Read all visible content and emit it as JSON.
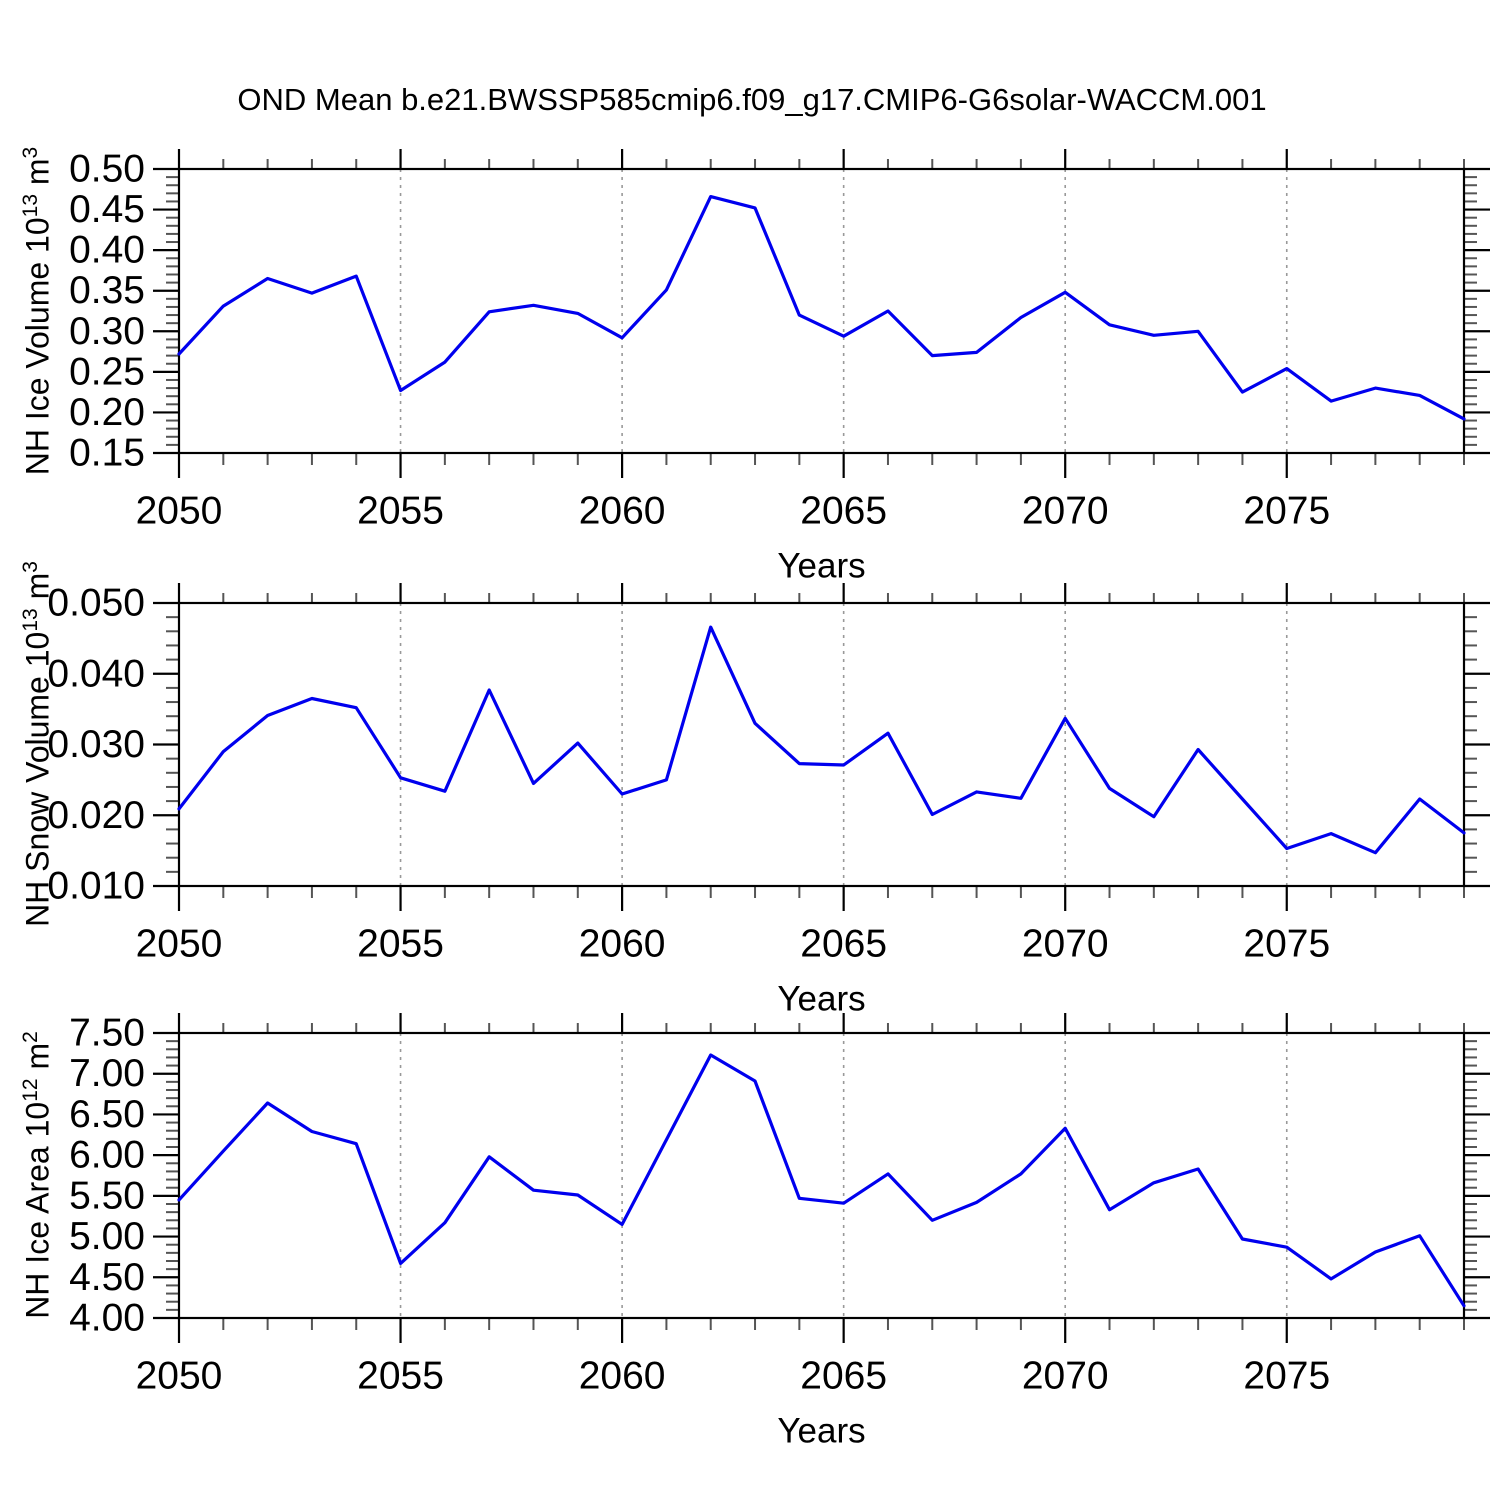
{
  "title": "OND Mean b.e21.BWSSP585cmip6.f09_g17.CMIP6-G6solar-WACCM.001",
  "colors": {
    "line": "#0000EE",
    "axis": "#000000",
    "minor_tick": "#555555",
    "grid": "#999999",
    "background": "#ffffff"
  },
  "chart_data": [
    {
      "type": "line",
      "name": "nh-ice-volume",
      "ylabel": {
        "text": "NH Ice Volume 10",
        "exp": "13",
        "unit": " m",
        "unit_exp": "3"
      },
      "xlabel": "Years",
      "xlim": [
        2050,
        2079
      ],
      "ylim": [
        0.15,
        0.5
      ],
      "xtick_values": [
        2050,
        2055,
        2060,
        2065,
        2070,
        2075
      ],
      "xtick_labels": [
        "2050",
        "2055",
        "2060",
        "2065",
        "2070",
        "2075"
      ],
      "xminor_step": 1,
      "ytick_values": [
        0.5,
        0.45,
        0.4,
        0.35,
        0.3,
        0.25,
        0.2,
        0.15
      ],
      "ytick_labels": [
        "0.50",
        "0.45",
        "0.40",
        "0.35",
        "0.30",
        "0.25",
        "0.20",
        "0.15"
      ],
      "yminor_step": 0.01,
      "grid_years": [
        2055,
        2060,
        2065,
        2070,
        2075
      ],
      "grid_on": true,
      "legend": "none",
      "x": [
        2050,
        2051,
        2052,
        2053,
        2054,
        2055,
        2056,
        2057,
        2058,
        2059,
        2060,
        2061,
        2062,
        2063,
        2064,
        2065,
        2066,
        2067,
        2068,
        2069,
        2070,
        2071,
        2072,
        2073,
        2074,
        2075,
        2076,
        2077,
        2078,
        2079
      ],
      "values": [
        0.272,
        0.331,
        0.365,
        0.347,
        0.368,
        0.227,
        0.262,
        0.324,
        0.332,
        0.322,
        0.292,
        0.351,
        0.466,
        0.452,
        0.32,
        0.294,
        0.325,
        0.27,
        0.274,
        0.317,
        0.348,
        0.308,
        0.295,
        0.3,
        0.225,
        0.254,
        0.214,
        0.23,
        0.221,
        0.192
      ]
    },
    {
      "type": "line",
      "name": "nh-snow-volume",
      "ylabel": {
        "text": "NH Snow Volume 10",
        "exp": "13",
        "unit": " m",
        "unit_exp": "3"
      },
      "xlabel": "Years",
      "xlim": [
        2050,
        2079
      ],
      "ylim": [
        0.01,
        0.05
      ],
      "xtick_values": [
        2050,
        2055,
        2060,
        2065,
        2070,
        2075
      ],
      "xtick_labels": [
        "2050",
        "2055",
        "2060",
        "2065",
        "2070",
        "2075"
      ],
      "xminor_step": 1,
      "ytick_values": [
        0.05,
        0.04,
        0.03,
        0.02,
        0.01
      ],
      "ytick_labels": [
        "0.050",
        "0.040",
        "0.030",
        "0.020",
        "0.010"
      ],
      "yminor_step": 0.002,
      "grid_years": [
        2055,
        2060,
        2065,
        2070,
        2075
      ],
      "grid_on": true,
      "legend": "none",
      "x": [
        2050,
        2051,
        2052,
        2053,
        2054,
        2055,
        2056,
        2057,
        2058,
        2059,
        2060,
        2061,
        2062,
        2063,
        2064,
        2065,
        2066,
        2067,
        2068,
        2069,
        2070,
        2071,
        2072,
        2073,
        2074,
        2075,
        2076,
        2077,
        2078,
        2079
      ],
      "values": [
        0.0209,
        0.029,
        0.0341,
        0.0365,
        0.0352,
        0.0253,
        0.0234,
        0.0377,
        0.0245,
        0.0302,
        0.023,
        0.025,
        0.0466,
        0.033,
        0.0273,
        0.0271,
        0.0316,
        0.0201,
        0.0233,
        0.0224,
        0.0337,
        0.0238,
        0.0198,
        0.0293,
        0.0223,
        0.0153,
        0.0174,
        0.0147,
        0.0223,
        0.0175
      ]
    },
    {
      "type": "line",
      "name": "nh-ice-area",
      "ylabel": {
        "text": "NH Ice Area 10",
        "exp": "12",
        "unit": " m",
        "unit_exp": "2"
      },
      "xlabel": "Years",
      "xlim": [
        2050,
        2079
      ],
      "ylim": [
        4.0,
        7.5
      ],
      "xtick_values": [
        2050,
        2055,
        2060,
        2065,
        2070,
        2075
      ],
      "xtick_labels": [
        "2050",
        "2055",
        "2060",
        "2065",
        "2070",
        "2075"
      ],
      "xminor_step": 1,
      "ytick_values": [
        7.5,
        7.0,
        6.5,
        6.0,
        5.5,
        5.0,
        4.5,
        4.0
      ],
      "ytick_labels": [
        "7.50",
        "7.00",
        "6.50",
        "6.00",
        "5.50",
        "5.00",
        "4.50",
        "4.00"
      ],
      "yminor_step": 0.1,
      "grid_years": [
        2055,
        2060,
        2065,
        2070,
        2075
      ],
      "grid_on": true,
      "legend": "none",
      "x": [
        2050,
        2051,
        2052,
        2053,
        2054,
        2055,
        2056,
        2057,
        2058,
        2059,
        2060,
        2061,
        2062,
        2063,
        2064,
        2065,
        2066,
        2067,
        2068,
        2069,
        2070,
        2071,
        2072,
        2073,
        2074,
        2075,
        2076,
        2077,
        2078,
        2079
      ],
      "values": [
        5.45,
        6.05,
        6.64,
        6.29,
        6.14,
        4.67,
        5.17,
        5.98,
        5.57,
        5.51,
        5.15,
        6.19,
        7.23,
        6.91,
        5.47,
        5.41,
        5.77,
        5.2,
        5.42,
        5.77,
        6.33,
        5.33,
        5.66,
        5.83,
        4.97,
        4.87,
        4.48,
        4.81,
        5.01,
        4.15
      ]
    }
  ]
}
